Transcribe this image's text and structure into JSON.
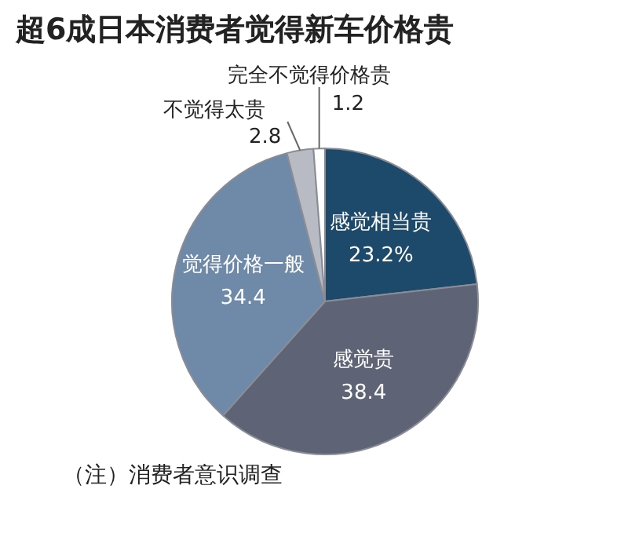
{
  "chart_data": {
    "type": "pie",
    "title": "超6成日本消费者觉得新车价格贵",
    "categories": [
      "感觉相当贵",
      "感觉贵",
      "觉得价格一般",
      "不觉得太贵",
      "完全不觉得价格贵"
    ],
    "values": [
      23.2,
      38.4,
      34.4,
      2.8,
      1.2
    ],
    "value_labels": [
      "23.2%",
      "38.4",
      "34.4",
      "2.8",
      "1.2"
    ],
    "colors": [
      "#1d4a6b",
      "#5e6475",
      "#6f89a8",
      "#b8bbc3",
      "#ffffff"
    ],
    "legend": false,
    "annotations": [
      "（注）消费者意识调查"
    ]
  }
}
